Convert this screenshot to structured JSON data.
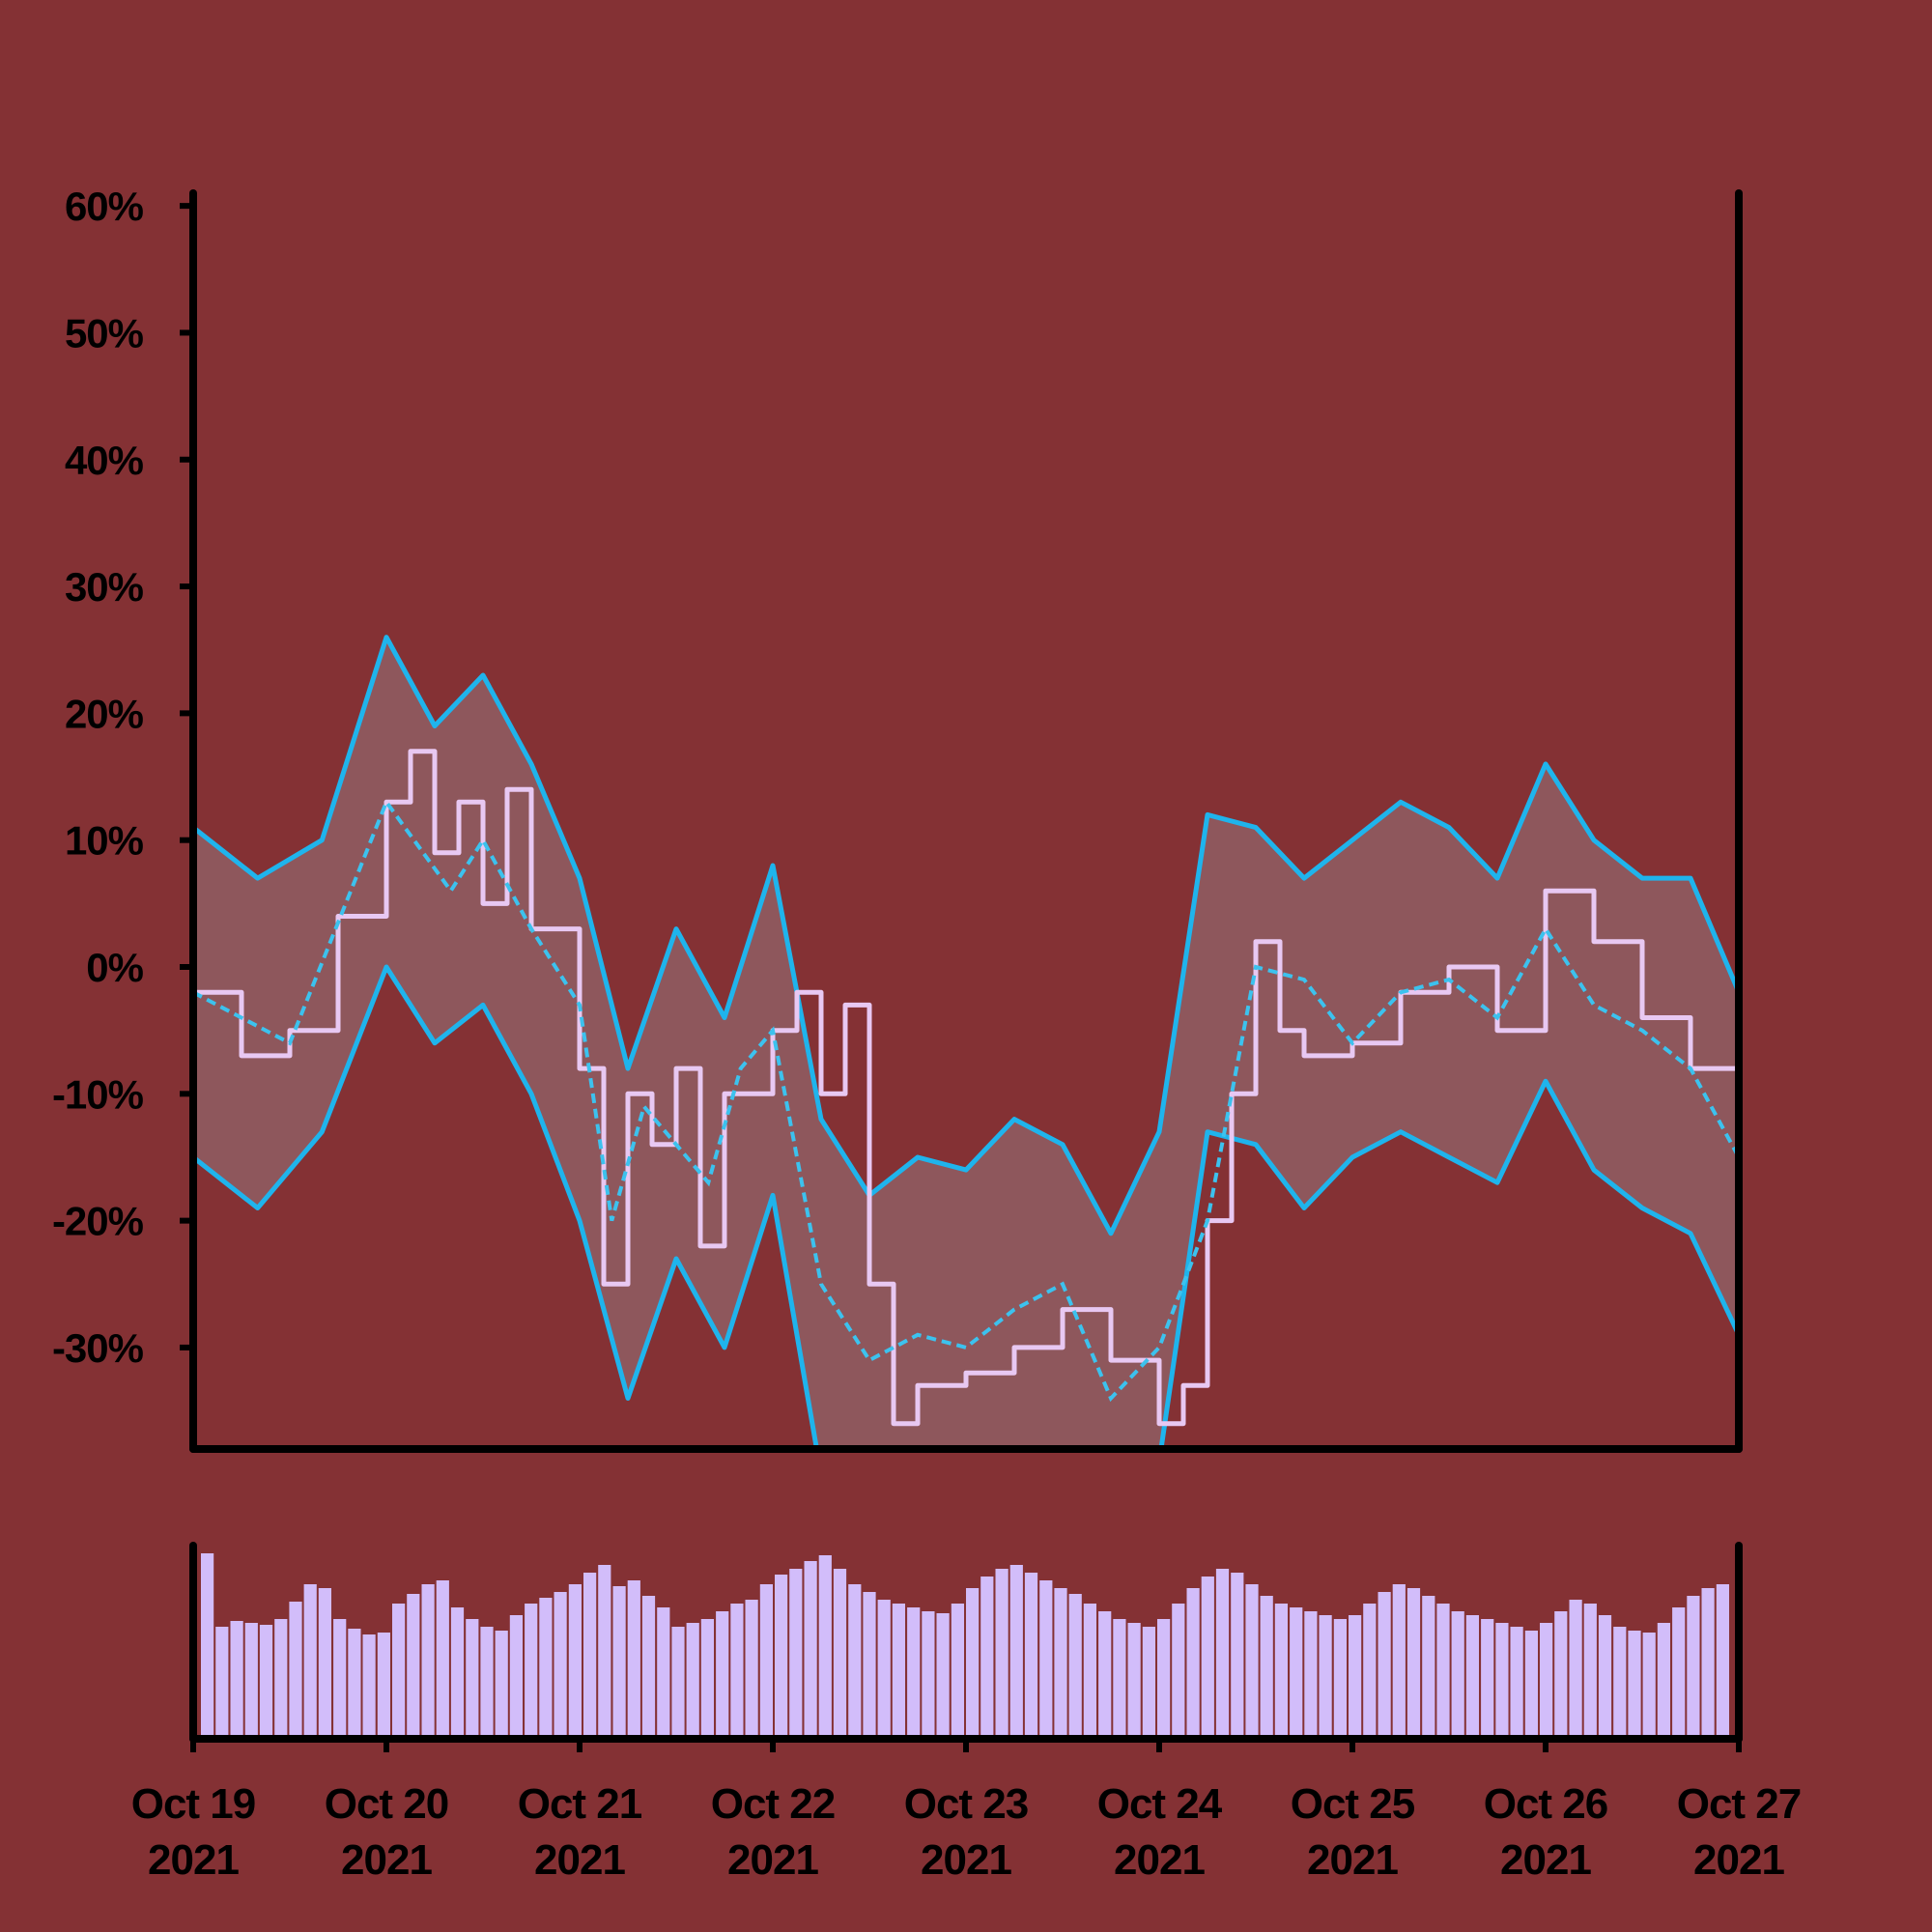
{
  "chart_data": {
    "type": "line",
    "x_range": [
      "2021-10-19",
      "2021-10-27"
    ],
    "y_unit": "%",
    "ylim": [
      -38,
      61
    ],
    "y_ticks": [
      60,
      50,
      40,
      30,
      20,
      10,
      0,
      -10,
      -20,
      -30
    ],
    "y_tick_labels": [
      "60%",
      "50%",
      "40%",
      "30%",
      "20%",
      "10%",
      "0%",
      "-10%",
      "-20%",
      "-30%"
    ],
    "x_ticks": [
      {
        "date": "2021-10-19",
        "line1": "Oct 19",
        "line2": "2021"
      },
      {
        "date": "2021-10-20",
        "line1": "Oct 20",
        "line2": "2021"
      },
      {
        "date": "2021-10-21",
        "line1": "Oct 21",
        "line2": "2021"
      },
      {
        "date": "2021-10-22",
        "line1": "Oct 22",
        "line2": "2021"
      },
      {
        "date": "2021-10-23",
        "line1": "Oct 23",
        "line2": "2021"
      },
      {
        "date": "2021-10-24",
        "line1": "Oct 24",
        "line2": "2021"
      },
      {
        "date": "2021-10-25",
        "line1": "Oct 25",
        "line2": "2021"
      },
      {
        "date": "2021-10-26",
        "line1": "Oct 26",
        "line2": "2021"
      },
      {
        "date": "2021-10-27",
        "line1": "Oct 27",
        "line2": "2021"
      }
    ],
    "series": [
      {
        "role": "price",
        "x": [
          "2021-10-19 00:00",
          "2021-10-19 06:00",
          "2021-10-19 12:00",
          "2021-10-19 18:00",
          "2021-10-20 00:00",
          "2021-10-20 03:00",
          "2021-10-20 06:00",
          "2021-10-20 09:00",
          "2021-10-20 12:00",
          "2021-10-20 15:00",
          "2021-10-20 18:00",
          "2021-10-21 00:00",
          "2021-10-21 03:00",
          "2021-10-21 06:00",
          "2021-10-21 09:00",
          "2021-10-21 12:00",
          "2021-10-21 15:00",
          "2021-10-21 18:00",
          "2021-10-22 00:00",
          "2021-10-22 03:00",
          "2021-10-22 06:00",
          "2021-10-22 09:00",
          "2021-10-22 12:00",
          "2021-10-22 15:00",
          "2021-10-22 18:00",
          "2021-10-23 00:00",
          "2021-10-23 06:00",
          "2021-10-23 12:00",
          "2021-10-23 18:00",
          "2021-10-24 00:00",
          "2021-10-24 03:00",
          "2021-10-24 06:00",
          "2021-10-24 09:00",
          "2021-10-24 12:00",
          "2021-10-24 15:00",
          "2021-10-24 18:00",
          "2021-10-25 00:00",
          "2021-10-25 06:00",
          "2021-10-25 12:00",
          "2021-10-25 18:00",
          "2021-10-26 00:00",
          "2021-10-26 06:00",
          "2021-10-26 12:00",
          "2021-10-26 18:00",
          "2021-10-27 00:00"
        ],
        "values": [
          -2,
          -7,
          -5,
          4,
          13,
          17,
          9,
          13,
          5,
          14,
          3,
          -8,
          -25,
          -10,
          -14,
          -8,
          -22,
          -10,
          -5,
          -2,
          -10,
          -3,
          -25,
          -36,
          -33,
          -32,
          -30,
          -27,
          -31,
          -36,
          -33,
          -20,
          -10,
          2,
          -5,
          -7,
          -6,
          -2,
          0,
          -5,
          6,
          2,
          -4,
          -8,
          -17
        ]
      },
      {
        "role": "moving-average",
        "x": [
          "2021-10-19 00:00",
          "2021-10-19 12:00",
          "2021-10-20 00:00",
          "2021-10-20 08:00",
          "2021-10-20 12:00",
          "2021-10-20 18:00",
          "2021-10-21 00:00",
          "2021-10-21 04:00",
          "2021-10-21 08:00",
          "2021-10-21 16:00",
          "2021-10-21 20:00",
          "2021-10-22 00:00",
          "2021-10-22 06:00",
          "2021-10-22 12:00",
          "2021-10-22 18:00",
          "2021-10-23 00:00",
          "2021-10-23 06:00",
          "2021-10-23 12:00",
          "2021-10-23 18:00",
          "2021-10-24 00:00",
          "2021-10-24 06:00",
          "2021-10-24 12:00",
          "2021-10-24 18:00",
          "2021-10-25 00:00",
          "2021-10-25 06:00",
          "2021-10-25 12:00",
          "2021-10-25 18:00",
          "2021-10-26 00:00",
          "2021-10-26 06:00",
          "2021-10-26 12:00",
          "2021-10-26 18:00",
          "2021-10-27 00:00"
        ],
        "values": [
          -2,
          -6,
          13,
          6,
          10,
          3,
          -3,
          -20,
          -11,
          -17,
          -8,
          -5,
          -25,
          -31,
          -29,
          -30,
          -27,
          -25,
          -34,
          -30,
          -20,
          0,
          -1,
          -6,
          -2,
          -1,
          -4,
          3,
          -3,
          -5,
          -8,
          -15
        ]
      },
      {
        "role": "upper-band",
        "x": [
          "2021-10-19 00:00",
          "2021-10-19 08:00",
          "2021-10-19 16:00",
          "2021-10-20 00:00",
          "2021-10-20 06:00",
          "2021-10-20 12:00",
          "2021-10-20 18:00",
          "2021-10-21 00:00",
          "2021-10-21 06:00",
          "2021-10-21 12:00",
          "2021-10-21 18:00",
          "2021-10-22 00:00",
          "2021-10-22 06:00",
          "2021-10-22 12:00",
          "2021-10-22 18:00",
          "2021-10-23 00:00",
          "2021-10-23 06:00",
          "2021-10-23 12:00",
          "2021-10-23 18:00",
          "2021-10-24 00:00",
          "2021-10-24 06:00",
          "2021-10-24 12:00",
          "2021-10-24 18:00",
          "2021-10-25 00:00",
          "2021-10-25 06:00",
          "2021-10-25 12:00",
          "2021-10-25 18:00",
          "2021-10-26 00:00",
          "2021-10-26 06:00",
          "2021-10-26 12:00",
          "2021-10-26 18:00",
          "2021-10-27 00:00"
        ],
        "values": [
          11,
          7,
          10,
          26,
          19,
          23,
          16,
          7,
          -8,
          3,
          -4,
          8,
          -12,
          -18,
          -15,
          -16,
          -12,
          -14,
          -21,
          -13,
          12,
          11,
          7,
          10,
          13,
          11,
          7,
          16,
          10,
          7,
          7,
          -2
        ]
      },
      {
        "role": "lower-band",
        "x": [
          "2021-10-19 00:00",
          "2021-10-19 08:00",
          "2021-10-19 16:00",
          "2021-10-20 00:00",
          "2021-10-20 06:00",
          "2021-10-20 12:00",
          "2021-10-20 18:00",
          "2021-10-21 00:00",
          "2021-10-21 06:00",
          "2021-10-21 12:00",
          "2021-10-21 18:00",
          "2021-10-22 00:00",
          "2021-10-22 06:00",
          "2021-10-22 12:00",
          "2021-10-22 18:00",
          "2021-10-23 00:00",
          "2021-10-23 06:00",
          "2021-10-23 12:00",
          "2021-10-23 18:00",
          "2021-10-24 00:00",
          "2021-10-24 06:00",
          "2021-10-24 12:00",
          "2021-10-24 18:00",
          "2021-10-25 00:00",
          "2021-10-25 06:00",
          "2021-10-25 12:00",
          "2021-10-25 18:00",
          "2021-10-26 00:00",
          "2021-10-26 06:00",
          "2021-10-26 12:00",
          "2021-10-26 18:00",
          "2021-10-27 00:00"
        ],
        "values": [
          -15,
          -19,
          -13,
          0,
          -6,
          -3,
          -10,
          -20,
          -34,
          -23,
          -30,
          -18,
          -40,
          -44,
          -42,
          -43,
          -39,
          -41,
          -46,
          -39,
          -13,
          -14,
          -19,
          -15,
          -13,
          -15,
          -17,
          -9,
          -16,
          -19,
          -21,
          -29
        ]
      }
    ],
    "volume_x_range": [
      "2021-10-19",
      "2021-10-27"
    ],
    "volume_ylim": [
      0,
      100
    ],
    "volume": [
      96,
      58,
      61,
      60,
      59,
      62,
      71,
      80,
      78,
      62,
      57,
      54,
      55,
      70,
      75,
      80,
      82,
      68,
      62,
      58,
      56,
      64,
      70,
      73,
      76,
      80,
      86,
      90,
      79,
      82,
      74,
      68,
      58,
      60,
      62,
      66,
      70,
      72,
      80,
      85,
      88,
      92,
      95,
      88,
      80,
      76,
      72,
      70,
      68,
      66,
      65,
      70,
      78,
      84,
      88,
      90,
      86,
      82,
      78,
      75,
      70,
      66,
      62,
      60,
      58,
      62,
      70,
      78,
      84,
      88,
      86,
      80,
      74,
      70,
      68,
      66,
      64,
      62,
      64,
      70,
      76,
      80,
      78,
      74,
      70,
      66,
      64,
      62,
      60,
      58,
      56,
      60,
      66,
      72,
      70,
      64,
      58,
      56,
      55,
      60,
      68,
      74,
      78,
      80
    ]
  }
}
